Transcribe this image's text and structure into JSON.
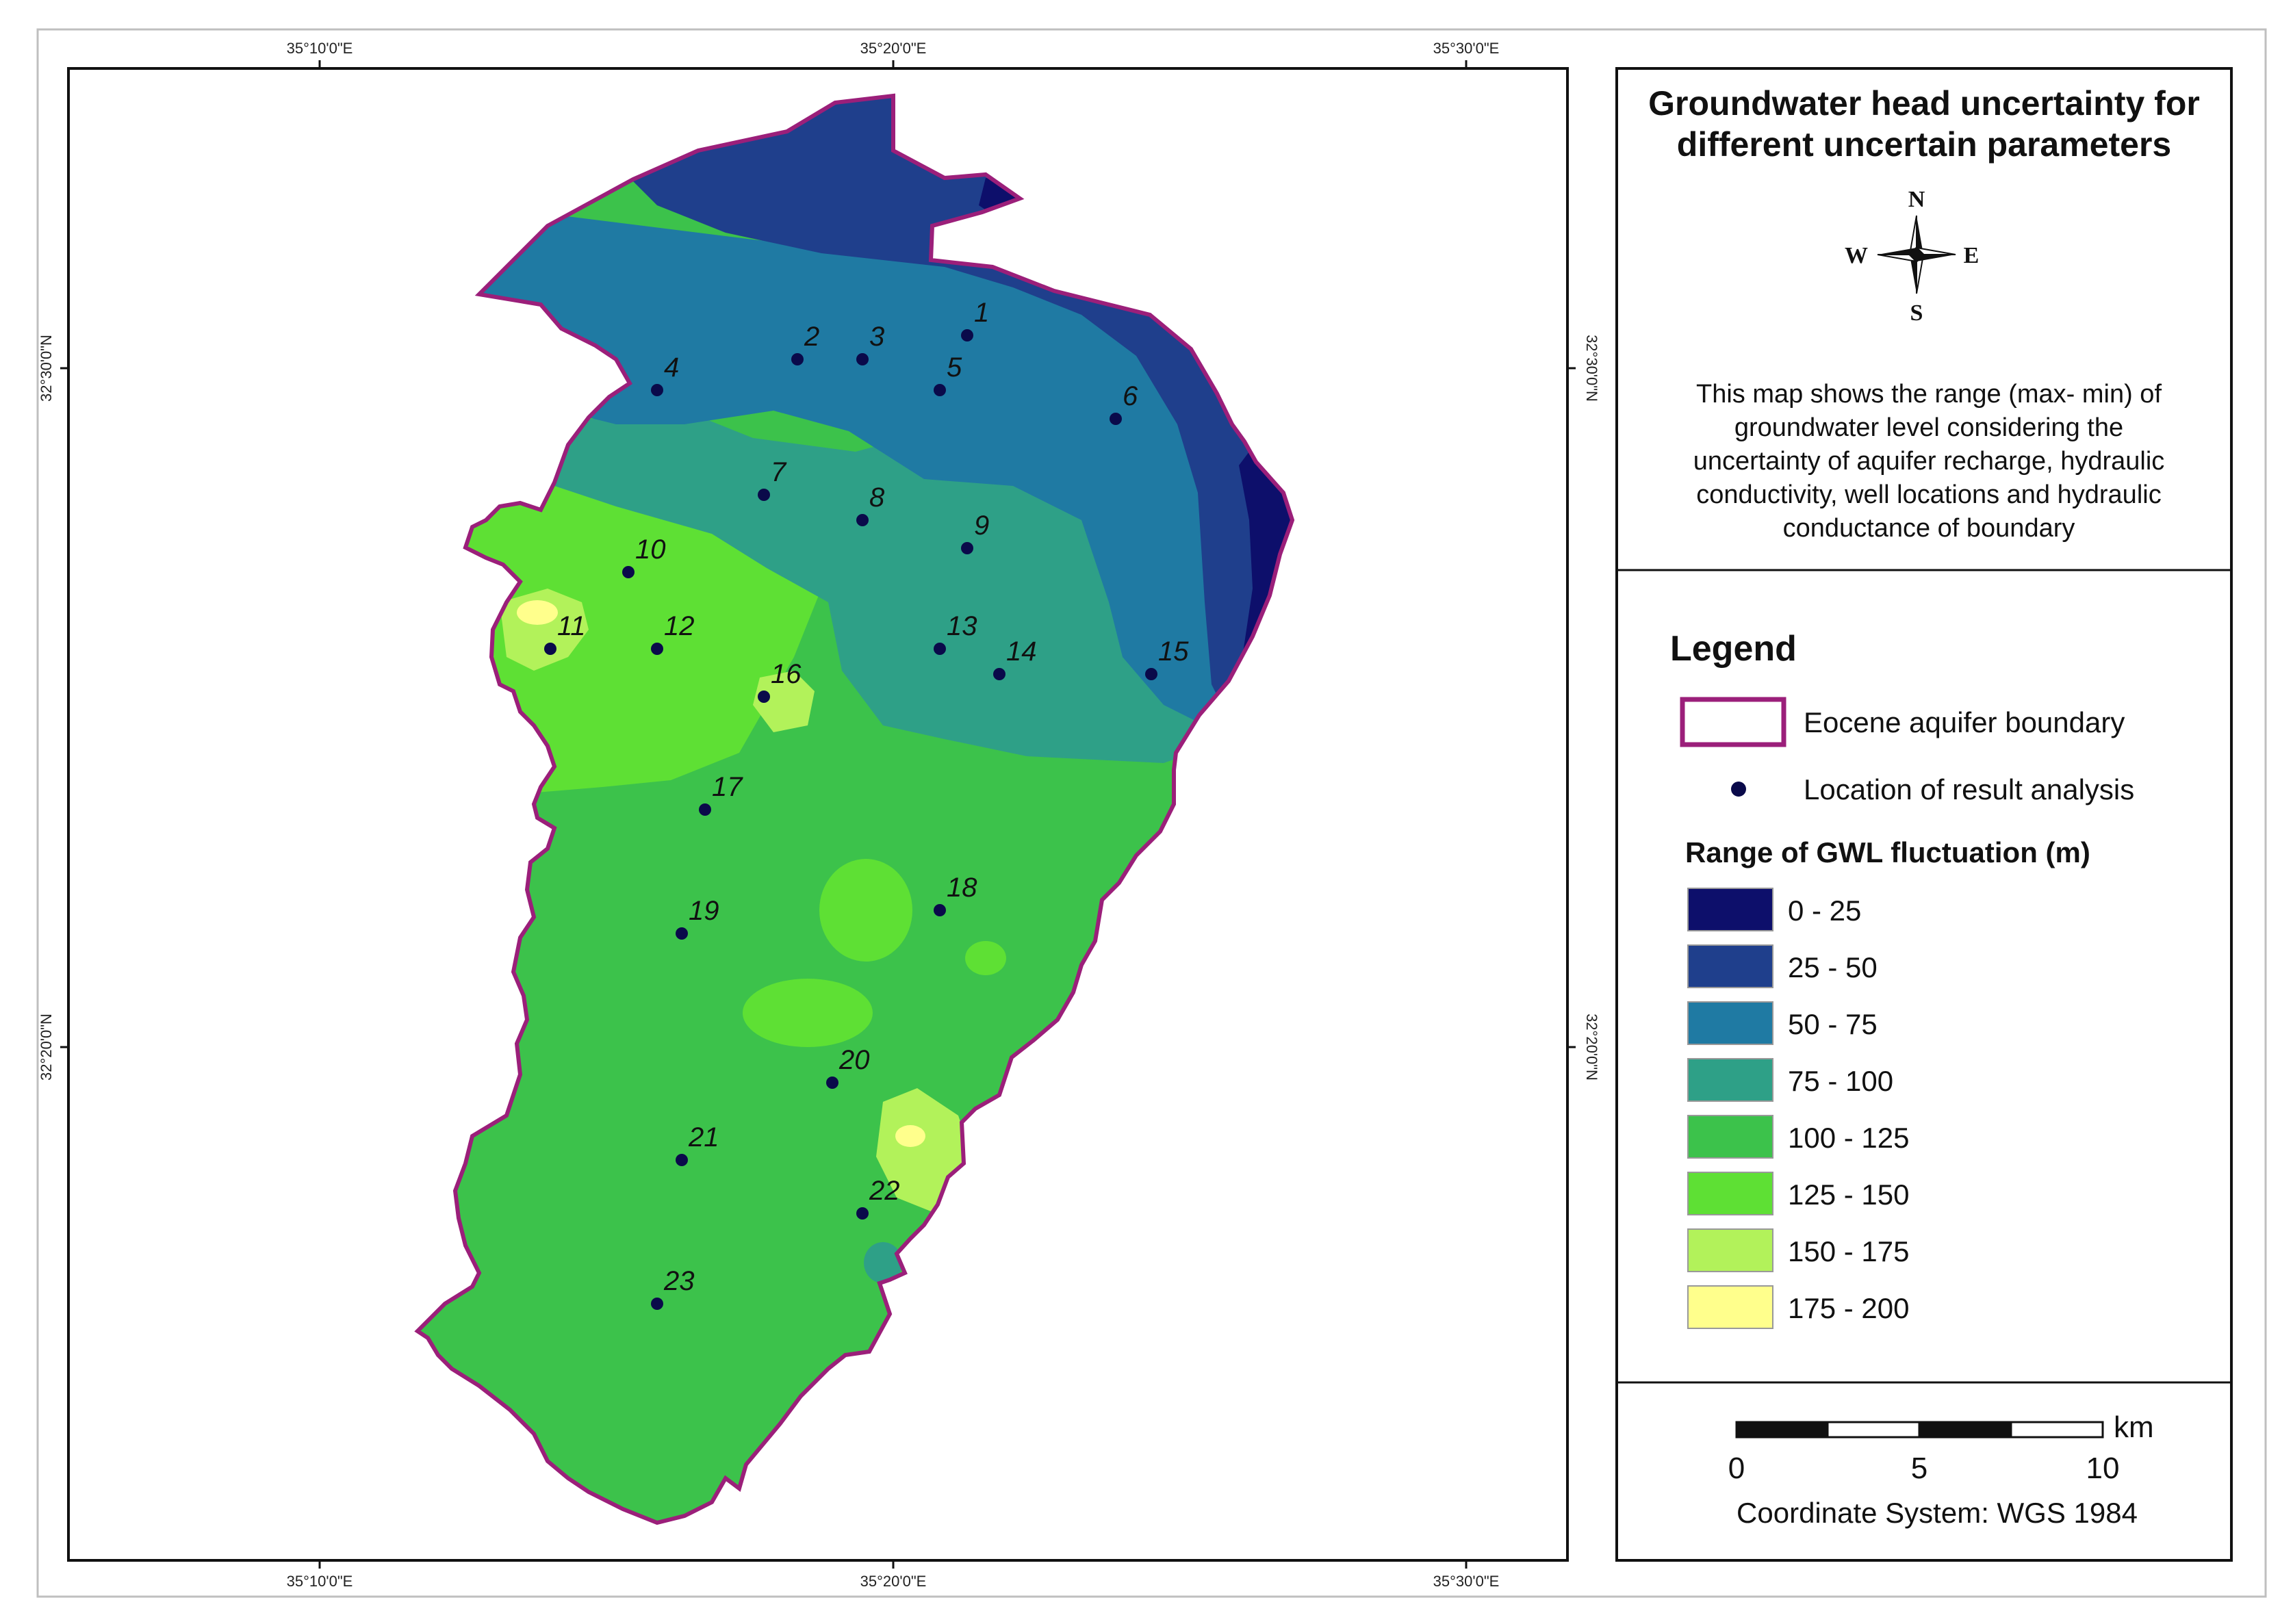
{
  "map": {
    "title_line1": "Groundwater head uncertainty for",
    "title_line2": "different uncertain parameters",
    "description": [
      "This map shows the range (max- min) of",
      "groundwater level considering the",
      "uncertainty of aquifer recharge,  hydraulic",
      "conductivity, well locations and hydraulic",
      "conductance of boundary"
    ],
    "north_arrow": {
      "n": "N",
      "s": "S",
      "e": "E",
      "w": "W"
    },
    "graticule": {
      "lon_labels": [
        "35°10'0\"E",
        "35°20'0\"E",
        "35°30'0\"E"
      ],
      "lat_labels": [
        "32°30'0\"N",
        "32°20'0\"N"
      ]
    },
    "wells": [
      "1",
      "2",
      "3",
      "4",
      "5",
      "6",
      "7",
      "8",
      "9",
      "10",
      "11",
      "12",
      "13",
      "14",
      "15",
      "16",
      "17",
      "18",
      "19",
      "20",
      "21",
      "22",
      "23"
    ]
  },
  "legend": {
    "heading": "Legend",
    "boundary_label": "Eocene aquifer boundary",
    "point_label": "Location of result analysis",
    "range_title": "Range of GWL fluctuation (m)",
    "classes": [
      {
        "label": "0 - 25",
        "color": "#0d0f6b"
      },
      {
        "label": "25 - 50",
        "color": "#1f3f8c"
      },
      {
        "label": "50 - 75",
        "color": "#1f7aa3"
      },
      {
        "label": "75 - 100",
        "color": "#2ea087"
      },
      {
        "label": "100 - 125",
        "color": "#3cc24b"
      },
      {
        "label": "125 - 150",
        "color": "#5ee034"
      },
      {
        "label": "150 - 175",
        "color": "#b2f25a"
      },
      {
        "label": "175 - 200",
        "color": "#ffff8c"
      }
    ],
    "boundary_color": "#9b1f7a",
    "point_color": "#0a0a4a"
  },
  "scalebar": {
    "unit": "km",
    "ticks": [
      "0",
      "5",
      "10"
    ],
    "coordinate_system": "Coordinate System: WGS 1984"
  }
}
